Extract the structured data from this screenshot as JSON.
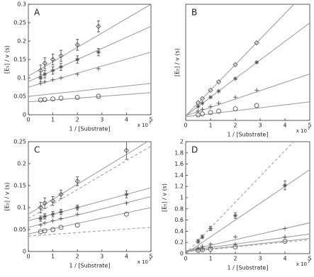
{
  "chart_data": [
    {
      "type": "line",
      "panel": "A",
      "y_label": "[E₀] / v (s)",
      "x_label": "1 / [Substrate]",
      "x_multiplier": "x 10",
      "x_exponent": "3",
      "xlim": [
        0,
        5
      ],
      "xticks": [
        0,
        1,
        2,
        3,
        4,
        5
      ],
      "ylim": [
        0,
        0.3
      ],
      "yticks": [
        0,
        0.05,
        0.1,
        0.15,
        0.2,
        0.25,
        0.3
      ],
      "x": [
        0.5,
        0.67,
        1,
        1.33,
        2,
        2.86
      ],
      "series": [
        {
          "marker": "diamond",
          "values": [
            0.12,
            0.14,
            0.15,
            0.16,
            0.19,
            0.24
          ],
          "errors": [
            0.015,
            0.015,
            0.015,
            0.015,
            0.015,
            0.015
          ],
          "fit": [
            0.105,
            0.3
          ]
        },
        {
          "marker": "star",
          "values": [
            0.1,
            0.11,
            0.12,
            0.13,
            0.15,
            0.17
          ],
          "errors": [
            0.01,
            0.01,
            0.01,
            0.01,
            0.01,
            0.01
          ],
          "fit": [
            0.09,
            0.24
          ]
        },
        {
          "marker": "plus",
          "values": [
            0.085,
            0.09,
            0.095,
            0.1,
            0.11,
            0.125
          ],
          "fit": [
            0.075,
            0.17
          ]
        },
        {
          "marker": "none",
          "fit": [
            0.05,
            0.085
          ]
        },
        {
          "marker": "circle",
          "values": [
            0.04,
            0.041,
            0.043,
            0.045,
            0.047,
            0.05
          ],
          "fit": [
            0.035,
            0.06
          ]
        }
      ]
    },
    {
      "type": "line",
      "panel": "B",
      "y_label": "[E₀] / v (s)",
      "x_label": "1 / [Substrate]",
      "x_multiplier": "x 10",
      "x_exponent": "3",
      "xlim": [
        0,
        5
      ],
      "xticks": [
        0,
        1,
        2,
        3,
        4,
        5
      ],
      "ylim": [
        0,
        2.5
      ],
      "x": [
        0.5,
        0.67,
        1,
        1.33,
        2,
        2.86
      ],
      "series": [
        {
          "marker": "diamond",
          "values": [
            0.38,
            0.47,
            0.65,
            0.83,
            1.2,
            1.67
          ],
          "fit": [
            0.1,
            2.85
          ]
        },
        {
          "marker": "star",
          "values": [
            0.3,
            0.37,
            0.5,
            0.63,
            0.9,
            1.25
          ],
          "fit": [
            0.1,
            2.1
          ]
        },
        {
          "marker": "plus",
          "values": [
            0.2,
            0.24,
            0.3,
            0.37,
            0.5,
            0.65
          ],
          "fit": [
            0.1,
            1.0
          ]
        },
        {
          "marker": "circle",
          "values": [
            0.12,
            0.14,
            0.17,
            0.2,
            0.25,
            0.32
          ],
          "fit": [
            0.08,
            0.4
          ]
        }
      ]
    },
    {
      "type": "line",
      "panel": "C",
      "y_label": "[E₀] / v (s)",
      "x_label": "1 / [Substrate]",
      "x_multiplier": "x 10",
      "x_exponent": "3",
      "xlim": [
        0,
        5
      ],
      "xticks": [
        0,
        1,
        2,
        3,
        4,
        5
      ],
      "ylim": [
        0,
        0.25
      ],
      "yticks": [
        0,
        0.05,
        0.1,
        0.15,
        0.2,
        0.25
      ],
      "x": [
        0.5,
        0.67,
        1,
        1.33,
        2,
        4
      ],
      "series": [
        {
          "marker": "diamond",
          "values": [
            0.1,
            0.11,
            0.115,
            0.13,
            0.16,
            0.23
          ],
          "errors": [
            0.012,
            0.012,
            0.01,
            0.01,
            0.01,
            0.02
          ],
          "fit": [
            0.085,
            0.255
          ]
        },
        {
          "marker": "none",
          "dashed": true,
          "fit": [
            0.075,
            0.24
          ]
        },
        {
          "marker": "star",
          "values": [
            0.075,
            0.08,
            0.085,
            0.09,
            0.1,
            0.13
          ],
          "errors": [
            0.006,
            0.006,
            0.006,
            0.006,
            0.006,
            0.008
          ],
          "fit": [
            0.07,
            0.145
          ]
        },
        {
          "marker": "plus",
          "values": [
            0.06,
            0.065,
            0.07,
            0.075,
            0.085,
            0.11
          ],
          "fit": [
            0.055,
            0.125
          ]
        },
        {
          "marker": "circle",
          "values": [
            0.045,
            0.047,
            0.05,
            0.055,
            0.06,
            0.085
          ],
          "fit": [
            0.04,
            0.1
          ]
        },
        {
          "marker": "none",
          "dashed": true,
          "fit": [
            0.035,
            0.055
          ]
        }
      ]
    },
    {
      "type": "line",
      "panel": "D",
      "y_label": "[E₀] / v (s)",
      "x_label": "1 / [Substrate]",
      "x_multiplier": "x 10",
      "x_exponent": "3",
      "xlim": [
        0,
        5
      ],
      "xticks": [
        0,
        1,
        2,
        3,
        4,
        5
      ],
      "ylim": [
        0,
        2
      ],
      "yticks": [
        0,
        0.2,
        0.4,
        0.6,
        0.8,
        1,
        1.2,
        1.4,
        1.6,
        1.8,
        2
      ],
      "x": [
        0.5,
        0.67,
        1,
        2,
        4
      ],
      "series": [
        {
          "marker": "star",
          "values": [
            0.22,
            0.3,
            0.45,
            0.68,
            1.22
          ],
          "errors": [
            0.03,
            0.03,
            0.04,
            0.05,
            0.08
          ],
          "fit": [
            0,
            1.5
          ]
        },
        {
          "marker": "none",
          "dashed": true,
          "fit": [
            0,
            2.3
          ]
        },
        {
          "marker": "plus",
          "values": [
            0.1,
            0.13,
            0.17,
            0.3,
            0.45
          ],
          "fit": [
            0.05,
            0.55
          ]
        },
        {
          "marker": "plus",
          "values": [
            0.08,
            0.09,
            0.12,
            0.17,
            0.3
          ],
          "fit": [
            0.05,
            0.35
          ]
        },
        {
          "marker": "circle",
          "values": [
            0.06,
            0.07,
            0.08,
            0.12,
            0.22
          ],
          "fit": [
            0.04,
            0.27
          ]
        },
        {
          "marker": "none",
          "dashed": true,
          "fit": [
            0.03,
            0.25
          ]
        }
      ]
    }
  ]
}
